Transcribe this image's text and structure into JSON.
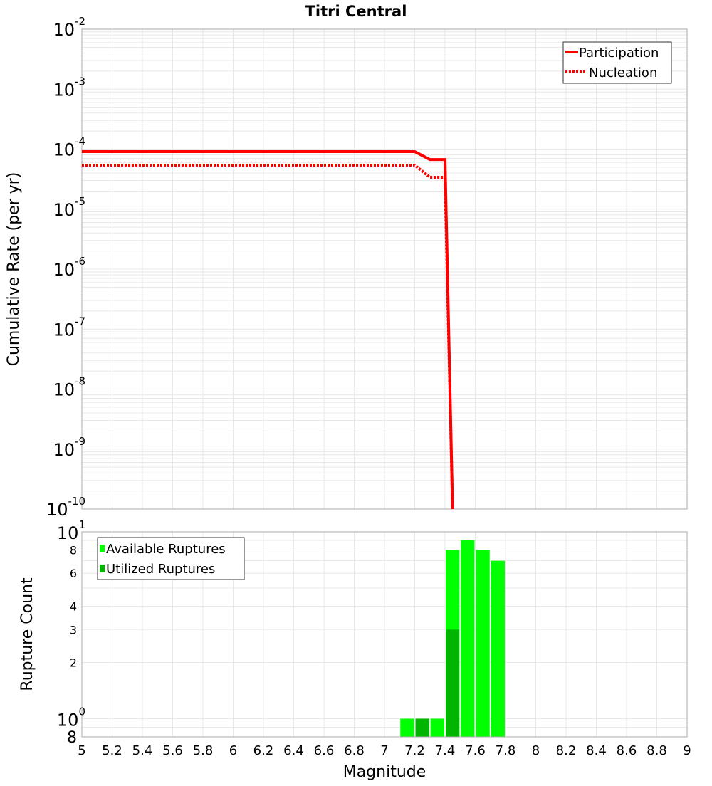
{
  "chart_data": [
    {
      "type": "line",
      "title": "Titri Central",
      "xlabel": "",
      "ylabel": "Cumulative Rate (per yr)",
      "xlim": [
        5,
        9
      ],
      "ylim": [
        1e-10,
        0.01
      ],
      "yscale": "log",
      "y_ticks": [
        {
          "base": "10",
          "exp": "-10",
          "value": -10
        },
        {
          "base": "10",
          "exp": "-9",
          "value": -9
        },
        {
          "base": "10",
          "exp": "-8",
          "value": -8
        },
        {
          "base": "10",
          "exp": "-7",
          "value": -7
        },
        {
          "base": "10",
          "exp": "-6",
          "value": -6
        },
        {
          "base": "10",
          "exp": "-5",
          "value": -5
        },
        {
          "base": "10",
          "exp": "-4",
          "value": -4
        },
        {
          "base": "10",
          "exp": "-3",
          "value": -3
        },
        {
          "base": "10",
          "exp": "-2",
          "value": -2
        }
      ],
      "grid": true,
      "legend_position": "top-right",
      "series": [
        {
          "name": "Participation",
          "color": "#ff0000",
          "style": "solid",
          "x": [
            5,
            7.2,
            7.3,
            7.4,
            7.45
          ],
          "y": [
            9.1e-05,
            9.1e-05,
            6.7e-05,
            6.7e-05,
            1e-10
          ]
        },
        {
          "name": "Nucleation",
          "color": "#ff0000",
          "style": "dotted",
          "x": [
            5,
            7.2,
            7.3,
            7.4,
            7.45
          ],
          "y": [
            5.4e-05,
            5.4e-05,
            3.4e-05,
            3.4e-05,
            1e-10
          ]
        }
      ]
    },
    {
      "type": "bar",
      "xlabel": "Magnitude",
      "ylabel": "Rupture Count",
      "xlim": [
        5,
        9
      ],
      "ylim": [
        0.8,
        10
      ],
      "yscale": "log",
      "bin_width": 0.1,
      "x_ticks": [
        "5",
        "5.2",
        "5.4",
        "5.6",
        "5.8",
        "6",
        "6.2",
        "6.4",
        "6.6",
        "6.8",
        "7",
        "7.2",
        "7.4",
        "7.6",
        "7.8",
        "8",
        "8.2",
        "8.4",
        "8.6",
        "8.8",
        "9"
      ],
      "y_major_ticks": [
        {
          "base": "10",
          "exp": "0",
          "value": 1
        },
        {
          "base": "10",
          "exp": "1",
          "value": 10
        }
      ],
      "y_minor_ticks": [
        {
          "label": "8",
          "value": 0.8
        },
        {
          "label": "2",
          "value": 2
        },
        {
          "label": "3",
          "value": 3
        },
        {
          "label": "4",
          "value": 4
        },
        {
          "label": "6",
          "value": 6
        },
        {
          "label": "8",
          "value": 8
        }
      ],
      "grid": true,
      "legend_position": "top-left",
      "series": [
        {
          "name": "Available Ruptures",
          "color": "#00ff00",
          "x": [
            7.15,
            7.25,
            7.35,
            7.45,
            7.55,
            7.65,
            7.75
          ],
          "values": [
            1,
            1,
            1,
            8,
            9,
            8,
            7
          ]
        },
        {
          "name": "Utilized Ruptures",
          "color": "#00b400",
          "x": [
            7.15,
            7.25,
            7.35,
            7.45,
            7.55,
            7.65,
            7.75
          ],
          "values": [
            0,
            1,
            0,
            3,
            0,
            0,
            0
          ]
        }
      ]
    }
  ]
}
